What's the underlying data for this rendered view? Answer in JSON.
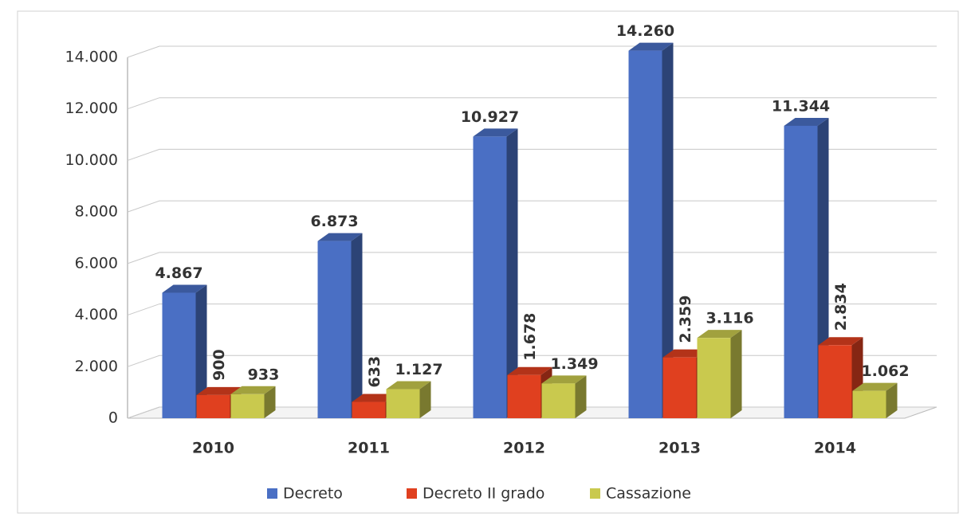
{
  "chart_data": {
    "type": "bar3d",
    "categories": [
      "2010",
      "2011",
      "2012",
      "2013",
      "2014"
    ],
    "series": [
      {
        "name": "Decreto",
        "color": "#4a6fc4",
        "values": [
          4867,
          6873,
          10927,
          14260,
          11344
        ],
        "value_labels": [
          "4.867",
          "6.873",
          "10.927",
          "14.260",
          "11.344"
        ]
      },
      {
        "name": "Decreto II grado",
        "color": "#e0401f",
        "values": [
          900,
          633,
          1678,
          2359,
          2834
        ],
        "value_labels": [
          "900",
          "633",
          "1.678",
          "2.359",
          "2.834"
        ]
      },
      {
        "name": "Cassazione",
        "color": "#c9c94e",
        "values": [
          933,
          1127,
          1349,
          3116,
          1062
        ],
        "value_labels": [
          "933",
          "1.127",
          "1.349",
          "3.116",
          "1.062"
        ]
      }
    ],
    "ylim": [
      0,
      14000
    ],
    "yticks": [
      0,
      {
        "value": 2000,
        "label": "2.000"
      },
      {
        "value": 4000,
        "label": "4.000"
      },
      {
        "value": 6000,
        "label": "6.000"
      },
      {
        "value": 8000,
        "label": "8.000"
      },
      {
        "value": 10000,
        "label": "10.000"
      },
      {
        "value": 12000,
        "label": "12.000"
      },
      {
        "value": 14000,
        "label": "14.000"
      }
    ],
    "grid": true,
    "legend": "bottom"
  }
}
